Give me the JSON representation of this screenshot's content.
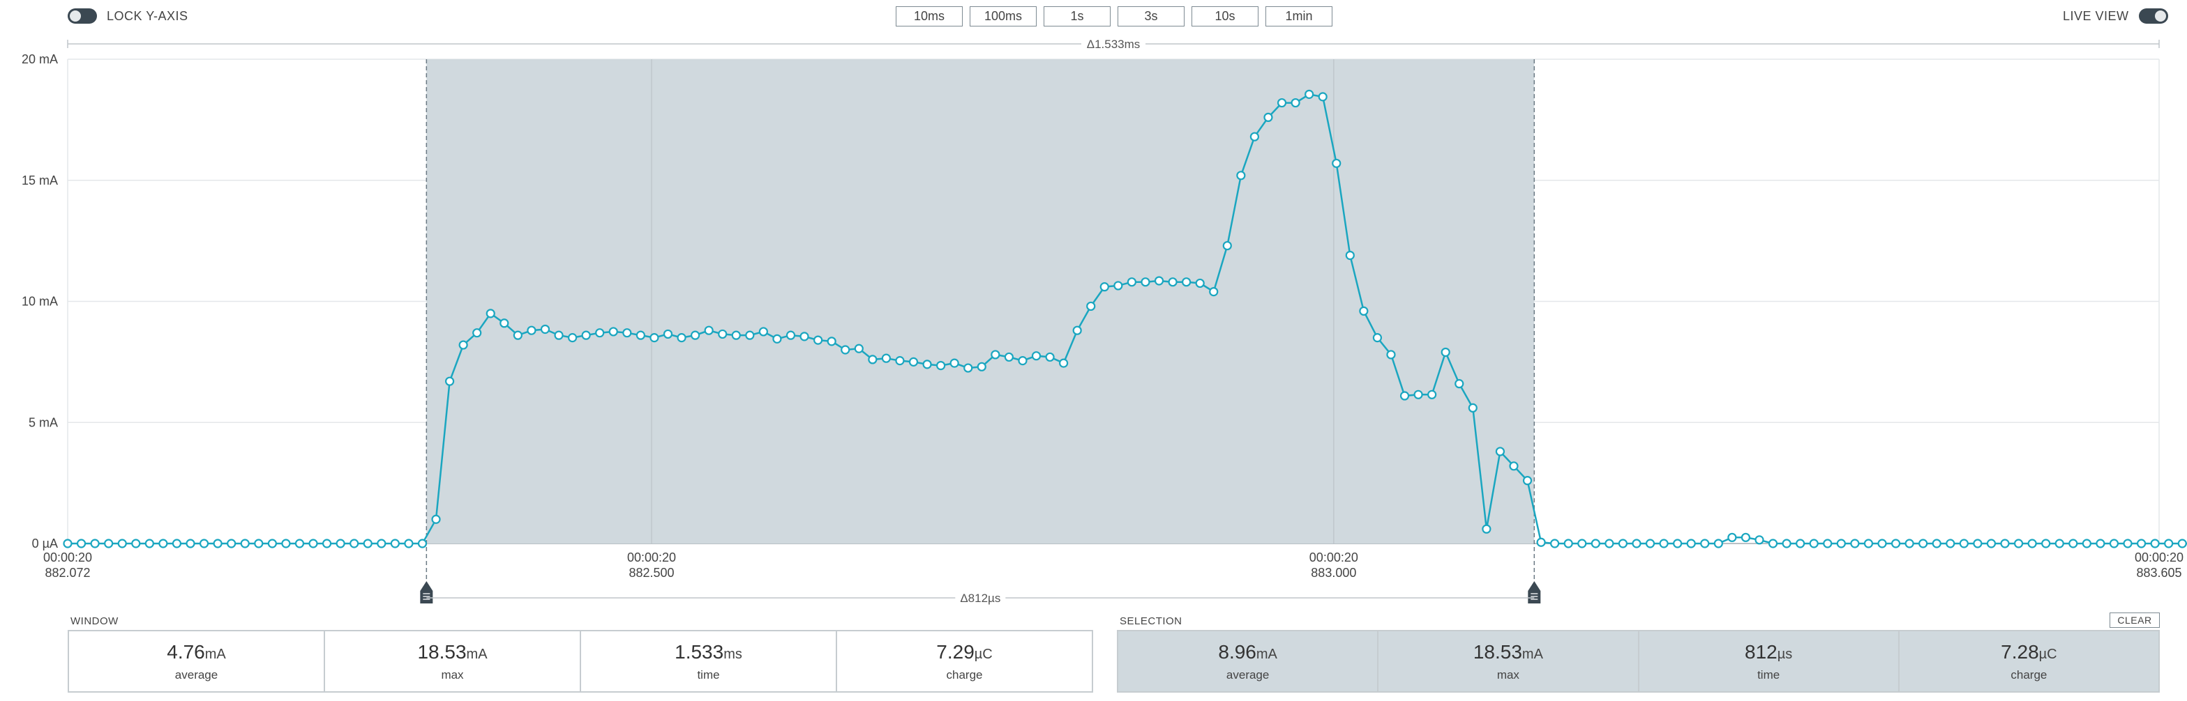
{
  "toolbar": {
    "lock_y_axis_label": "LOCK Y-AXIS",
    "live_view_label": "LIVE VIEW",
    "window_buttons": [
      "10ms",
      "100ms",
      "1s",
      "3s",
      "10s",
      "1min"
    ]
  },
  "chart_data": {
    "type": "line",
    "y_unit": "mA",
    "ylim": [
      0,
      20
    ],
    "y_ticks": [
      "0 µA",
      "5 mA",
      "10 mA",
      "15 mA",
      "20 mA"
    ],
    "x_ticks": [
      {
        "time": "00:00:20",
        "sub": "882.072"
      },
      {
        "time": "00:00:20",
        "sub": "882.500"
      },
      {
        "time": "00:00:20",
        "sub": "883.000"
      },
      {
        "time": "00:00:20",
        "sub": "883.605"
      }
    ],
    "window_delta_label": "Δ1.533ms",
    "selection_delta_label": "Δ812µs",
    "selection_range_ms": [
      882.335,
      883.147
    ],
    "x_range_ms": [
      882.072,
      883.605
    ],
    "sample_interval_ms": 0.01,
    "values": [
      0,
      0,
      0,
      0,
      0,
      0,
      0,
      0,
      0,
      0,
      0,
      0,
      0,
      0,
      0,
      0,
      0,
      0,
      0,
      0,
      0,
      0,
      0,
      0,
      0,
      0,
      0,
      1.0,
      6.7,
      8.2,
      8.7,
      9.5,
      9.1,
      8.6,
      8.8,
      8.85,
      8.6,
      8.5,
      8.6,
      8.7,
      8.75,
      8.7,
      8.6,
      8.5,
      8.65,
      8.5,
      8.6,
      8.8,
      8.65,
      8.6,
      8.6,
      8.75,
      8.45,
      8.6,
      8.55,
      8.4,
      8.35,
      8.0,
      8.05,
      7.6,
      7.65,
      7.55,
      7.5,
      7.4,
      7.35,
      7.45,
      7.25,
      7.3,
      7.8,
      7.7,
      7.55,
      7.75,
      7.7,
      7.45,
      8.8,
      9.8,
      10.6,
      10.65,
      10.8,
      10.8,
      10.85,
      10.8,
      10.8,
      10.75,
      10.4,
      12.3,
      15.2,
      16.8,
      17.6,
      18.2,
      18.2,
      18.55,
      18.45,
      15.7,
      11.9,
      9.6,
      8.5,
      7.8,
      6.1,
      6.15,
      6.15,
      7.9,
      6.6,
      5.6,
      0.6,
      3.8,
      3.2,
      2.6,
      0.05,
      0,
      0,
      0,
      0,
      0,
      0,
      0,
      0,
      0,
      0,
      0,
      0,
      0,
      0.25,
      0.25,
      0.15,
      0,
      0,
      0,
      0,
      0,
      0,
      0,
      0,
      0,
      0,
      0,
      0,
      0,
      0,
      0,
      0,
      0,
      0,
      0,
      0,
      0,
      0,
      0,
      0,
      0,
      0,
      0,
      0,
      0,
      0,
      0,
      0,
      0,
      0,
      0,
      0,
      0,
      0,
      0,
      0
    ]
  },
  "window_stats": {
    "label": "WINDOW",
    "items": [
      {
        "value": "4.76",
        "unit": "mA",
        "label": "average"
      },
      {
        "value": "18.53",
        "unit": "mA",
        "label": "max"
      },
      {
        "value": "1.533",
        "unit": "ms",
        "label": "time"
      },
      {
        "value": "7.29",
        "unit": "µC",
        "label": "charge"
      }
    ]
  },
  "selection_stats": {
    "label": "SELECTION",
    "clear_label": "CLEAR",
    "items": [
      {
        "value": "8.96",
        "unit": "mA",
        "label": "average"
      },
      {
        "value": "18.53",
        "unit": "mA",
        "label": "max"
      },
      {
        "value": "812",
        "unit": "µs",
        "label": "time"
      },
      {
        "value": "7.28",
        "unit": "µC",
        "label": "charge"
      }
    ]
  },
  "colors": {
    "trace": "#1aa6c0",
    "selection_fill": "#d0d9de",
    "grid": "#e4e7ea",
    "axis": "#b9c0c5",
    "toggle": "#3b4852"
  }
}
